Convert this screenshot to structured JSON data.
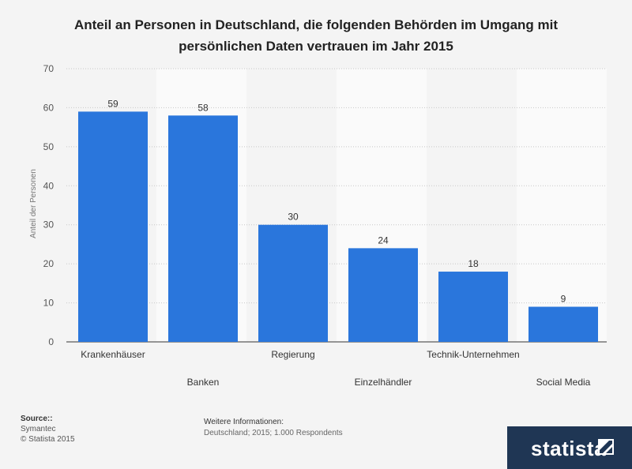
{
  "chart_data": {
    "type": "bar",
    "title": "Anteil an Personen in Deutschland, die folgenden Behörden im Umgang mit persönlichen Daten vertrauen im Jahr 2015",
    "categories": [
      "Krankenhäuser",
      "Banken",
      "Regierung",
      "Einzelhändler",
      "Technik-Unternehmen",
      "Social Media"
    ],
    "values": [
      59,
      58,
      30,
      24,
      18,
      9
    ],
    "xlabel": "",
    "ylabel": "Anteil der Personen",
    "ylim": [
      0,
      70
    ],
    "yticks": [
      0,
      10,
      20,
      30,
      40,
      50,
      60,
      70
    ],
    "grid": true,
    "bar_color": "#2a76dc"
  },
  "footer": {
    "source_label": "Source::",
    "source_lines": [
      "Symantec",
      "© Statista 2015"
    ],
    "info_label": "Weitere Informationen:",
    "info_text": "Deutschland; 2015; 1.000 Respondents",
    "logo_text": "statista"
  },
  "colors": {
    "background": "#f4f4f4",
    "bar": "#2a76dc",
    "logo_bg": "#1f3654"
  }
}
